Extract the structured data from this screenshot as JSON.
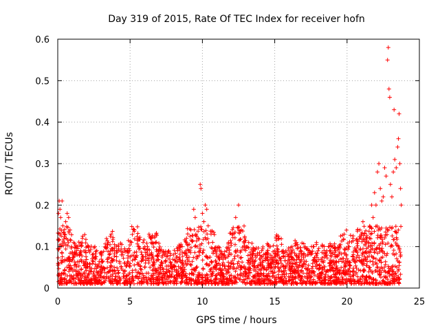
{
  "chart_data": {
    "type": "scatter",
    "title": "Day 319 of 2015, Rate Of TEC Index for receiver hofn",
    "xlabel": "GPS time / hours",
    "ylabel": "ROTI / TECUs",
    "xlim": [
      0,
      25
    ],
    "ylim": [
      0,
      0.6
    ],
    "xticks": [
      0,
      5,
      10,
      15,
      20,
      25
    ],
    "yticks": [
      0,
      0.1,
      0.2,
      0.3,
      0.4,
      0.5,
      0.6
    ],
    "xtick_labels": [
      "0",
      "5",
      "10",
      "15",
      "20",
      "25"
    ],
    "ytick_labels": [
      "0",
      "0.1",
      "0.2",
      "0.3",
      "0.4",
      "0.5",
      "0.6"
    ],
    "grid": true,
    "marker": "+",
    "color": "#ff0000",
    "series": [
      {
        "points": [
          [
            0.05,
            0.18
          ],
          [
            0.1,
            0.21
          ],
          [
            0.15,
            0.19
          ],
          [
            0.2,
            0.17
          ],
          [
            0.3,
            0.21
          ],
          [
            0.35,
            0.15
          ],
          [
            0.45,
            0.13
          ],
          [
            0.55,
            0.16
          ],
          [
            0.65,
            0.18
          ],
          [
            0.75,
            0.17
          ],
          [
            0.85,
            0.14
          ],
          [
            0.95,
            0.1
          ],
          [
            1.1,
            0.11
          ],
          [
            1.3,
            0.09
          ],
          [
            1.5,
            0.08
          ],
          [
            1.7,
            0.12
          ],
          [
            1.9,
            0.09
          ],
          [
            2.1,
            0.1
          ],
          [
            2.4,
            0.08
          ],
          [
            2.7,
            0.09
          ],
          [
            3.0,
            0.08
          ],
          [
            3.3,
            0.1
          ],
          [
            3.5,
            0.11
          ],
          [
            3.7,
            0.13
          ],
          [
            3.9,
            0.09
          ],
          [
            4.2,
            0.1
          ],
          [
            4.5,
            0.08
          ],
          [
            4.8,
            0.09
          ],
          [
            5.1,
            0.11
          ],
          [
            5.3,
            0.14
          ],
          [
            5.6,
            0.12
          ],
          [
            5.9,
            0.11
          ],
          [
            6.2,
            0.1
          ],
          [
            6.5,
            0.12
          ],
          [
            6.8,
            0.13
          ],
          [
            7.1,
            0.09
          ],
          [
            7.4,
            0.08
          ],
          [
            7.7,
            0.07
          ],
          [
            8.0,
            0.08
          ],
          [
            8.3,
            0.09
          ],
          [
            8.6,
            0.1
          ],
          [
            8.9,
            0.12
          ],
          [
            9.2,
            0.14
          ],
          [
            9.4,
            0.19
          ],
          [
            9.5,
            0.17
          ],
          [
            9.7,
            0.12
          ],
          [
            9.85,
            0.25
          ],
          [
            9.9,
            0.24
          ],
          [
            10.0,
            0.18
          ],
          [
            10.1,
            0.16
          ],
          [
            10.2,
            0.2
          ],
          [
            10.3,
            0.19
          ],
          [
            10.4,
            0.15
          ],
          [
            10.6,
            0.13
          ],
          [
            10.9,
            0.09
          ],
          [
            11.2,
            0.09
          ],
          [
            11.5,
            0.08
          ],
          [
            11.8,
            0.11
          ],
          [
            12.1,
            0.13
          ],
          [
            12.3,
            0.17
          ],
          [
            12.5,
            0.2
          ],
          [
            12.7,
            0.14
          ],
          [
            12.9,
            0.1
          ],
          [
            13.2,
            0.11
          ],
          [
            13.5,
            0.09
          ],
          [
            13.8,
            0.08
          ],
          [
            14.1,
            0.09
          ],
          [
            14.4,
            0.08
          ],
          [
            14.7,
            0.1
          ],
          [
            15.0,
            0.09
          ],
          [
            15.3,
            0.12
          ],
          [
            15.6,
            0.09
          ],
          [
            15.9,
            0.08
          ],
          [
            16.2,
            0.1
          ],
          [
            16.5,
            0.11
          ],
          [
            16.8,
            0.09
          ],
          [
            17.1,
            0.1
          ],
          [
            17.4,
            0.09
          ],
          [
            17.7,
            0.1
          ],
          [
            18.0,
            0.09
          ],
          [
            18.3,
            0.1
          ],
          [
            18.6,
            0.09
          ],
          [
            18.9,
            0.1
          ],
          [
            19.2,
            0.09
          ],
          [
            19.5,
            0.1
          ],
          [
            19.8,
            0.13
          ],
          [
            20.1,
            0.1
          ],
          [
            20.4,
            0.12
          ],
          [
            20.6,
            0.09
          ],
          [
            20.9,
            0.14
          ],
          [
            21.1,
            0.16
          ],
          [
            21.3,
            0.12
          ],
          [
            21.5,
            0.11
          ],
          [
            21.7,
            0.2
          ],
          [
            21.8,
            0.17
          ],
          [
            21.9,
            0.23
          ],
          [
            22.0,
            0.2
          ],
          [
            22.1,
            0.28
          ],
          [
            22.2,
            0.3
          ],
          [
            22.3,
            0.24
          ],
          [
            22.4,
            0.21
          ],
          [
            22.5,
            0.22
          ],
          [
            22.6,
            0.29
          ],
          [
            22.7,
            0.27
          ],
          [
            22.8,
            0.55
          ],
          [
            22.85,
            0.58
          ],
          [
            22.9,
            0.48
          ],
          [
            22.95,
            0.46
          ],
          [
            23.0,
            0.25
          ],
          [
            23.1,
            0.22
          ],
          [
            23.2,
            0.28
          ],
          [
            23.25,
            0.43
          ],
          [
            23.3,
            0.31
          ],
          [
            23.4,
            0.29
          ],
          [
            23.5,
            0.34
          ],
          [
            23.55,
            0.36
          ],
          [
            23.6,
            0.42
          ],
          [
            23.65,
            0.3
          ],
          [
            23.7,
            0.24
          ],
          [
            23.75,
            0.2
          ]
        ]
      }
    ]
  }
}
